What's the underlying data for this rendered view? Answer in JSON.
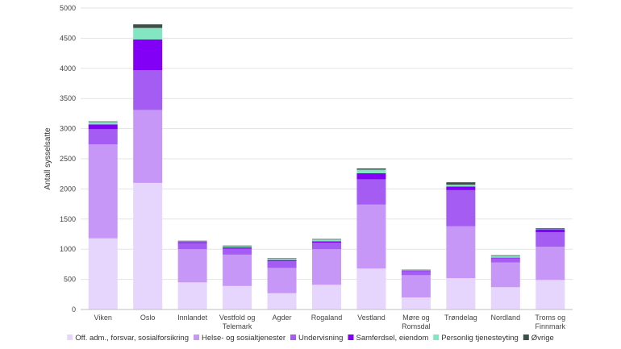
{
  "chart_data": {
    "type": "bar",
    "stacked": true,
    "title": "",
    "xlabel": "",
    "ylabel": "Antall sysselsatte",
    "ylim": [
      0,
      5000
    ],
    "yticks": [
      0,
      500,
      1000,
      1500,
      2000,
      2500,
      3000,
      3500,
      4000,
      4500,
      5000
    ],
    "grid": true,
    "legend_position": "bottom",
    "categories": [
      "Viken",
      "Oslo",
      "Innlandet",
      "Vestfold og Telemark",
      "Agder",
      "Rogaland",
      "Vestland",
      "Møre og Romsdal",
      "Trøndelag",
      "Nordland",
      "Troms og Finnmark"
    ],
    "category_lines": [
      [
        "Viken"
      ],
      [
        "Oslo"
      ],
      [
        "Innlandet"
      ],
      [
        "Vestfold og",
        "Telemark"
      ],
      [
        "Agder"
      ],
      [
        "Rogaland"
      ],
      [
        "Vestland"
      ],
      [
        "Møre og",
        "Romsdal"
      ],
      [
        "Trøndelag"
      ],
      [
        "Nordland"
      ],
      [
        "Troms og",
        "Finnmark"
      ]
    ],
    "series": [
      {
        "name": "Off. adm., forsvar, sosialforsikring",
        "color": "#e6d5fc",
        "values": [
          1180,
          2100,
          450,
          390,
          270,
          410,
          680,
          200,
          520,
          370,
          490
        ]
      },
      {
        "name": "Helse- og sosialtjenester",
        "color": "#c797f8",
        "values": [
          1560,
          1210,
          550,
          520,
          420,
          590,
          1060,
          370,
          860,
          410,
          550
        ]
      },
      {
        "name": "Undervisning",
        "color": "#a45cf2",
        "values": [
          250,
          660,
          100,
          100,
          110,
          110,
          420,
          60,
          600,
          70,
          240
        ]
      },
      {
        "name": "Samferdsel, eiendom",
        "color": "#8200f5",
        "values": [
          80,
          510,
          20,
          20,
          20,
          20,
          100,
          10,
          60,
          10,
          50
        ]
      },
      {
        "name": "Personlig tjenesteyting",
        "color": "#82e6c3",
        "values": [
          40,
          190,
          10,
          20,
          20,
          30,
          60,
          10,
          30,
          30,
          10
        ]
      },
      {
        "name": "Øvrige",
        "color": "#3d4f49",
        "values": [
          10,
          60,
          10,
          10,
          10,
          10,
          20,
          10,
          40,
          10,
          10
        ]
      }
    ]
  }
}
